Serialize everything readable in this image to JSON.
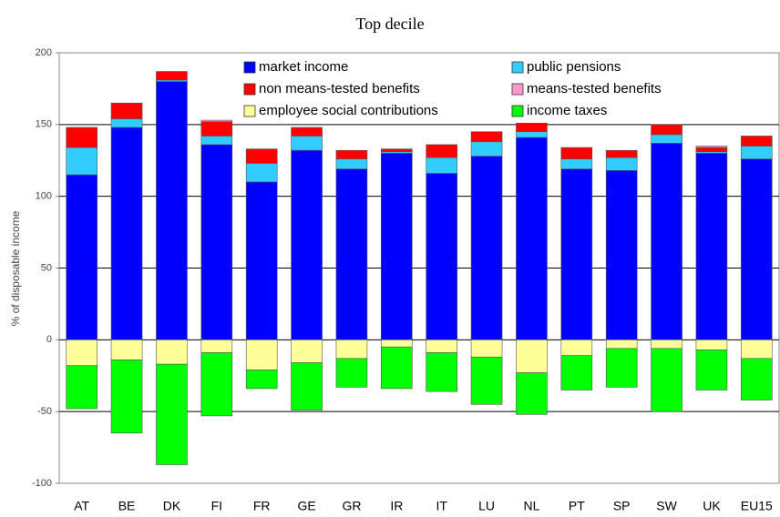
{
  "chart_data": {
    "type": "stacked_bar",
    "title": "Top decile",
    "y_label": "% of disposable income",
    "categories": [
      "AT",
      "BE",
      "DK",
      "FI",
      "FR",
      "GE",
      "GR",
      "IR",
      "IT",
      "LU",
      "NL",
      "PT",
      "SP",
      "SW",
      "UK",
      "EU15"
    ],
    "series": [
      {
        "name": "market income",
        "color": "#0000ff",
        "values": [
          115,
          148,
          180,
          136,
          110,
          132,
          119,
          130,
          116,
          128,
          141,
          119,
          118,
          137,
          130,
          126
        ]
      },
      {
        "name": "public pensions",
        "color": "#33ccff",
        "values": [
          19,
          6,
          1,
          6,
          13,
          10,
          7,
          1,
          11,
          10,
          4,
          7,
          9,
          6,
          1,
          9
        ]
      },
      {
        "name": "non means-tested benefits",
        "color": "#ff0000",
        "values": [
          14,
          11,
          6,
          10,
          10,
          6,
          6,
          2,
          9,
          7,
          6,
          8,
          5,
          7,
          3,
          7
        ]
      },
      {
        "name": "means-tested benefits",
        "color": "#ff99cc",
        "values": [
          0,
          0,
          0,
          1,
          0,
          0,
          0,
          0,
          0,
          0,
          0,
          0,
          0,
          0,
          1,
          0
        ]
      },
      {
        "name": "employee social contributions",
        "color": "#ffff99",
        "values": [
          -18,
          -14,
          -17,
          -9,
          -21,
          -16,
          -13,
          -5,
          -9,
          -12,
          -23,
          -11,
          -6,
          -6,
          -7,
          -13
        ]
      },
      {
        "name": "income taxes",
        "color": "#00ff00",
        "values": [
          -30,
          -51,
          -70,
          -44,
          -13,
          -33,
          -20,
          -29,
          -27,
          -33,
          -29,
          -24,
          -27,
          -44,
          -28,
          -29
        ]
      }
    ],
    "ylim": [
      -100,
      200
    ],
    "yticks": [
      -100,
      -50,
      0,
      50,
      100,
      150,
      200
    ],
    "grid": true,
    "legend": "upper center"
  }
}
